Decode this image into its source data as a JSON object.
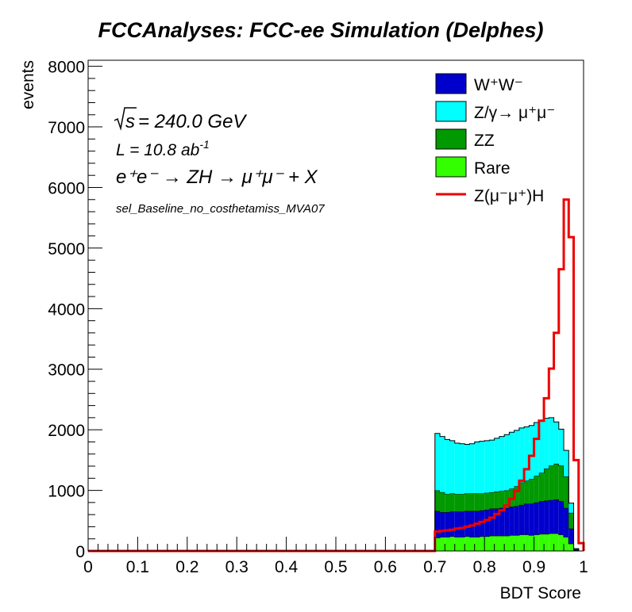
{
  "chart_data": {
    "type": "histogram",
    "title": "FCCAnalyses: FCC-ee Simulation (Delphes)",
    "xlabel": "BDT Score",
    "ylabel": "events",
    "xlim": [
      0,
      1
    ],
    "ylim": [
      0,
      8100
    ],
    "x_ticks": [
      "0",
      "0.1",
      "0.2",
      "0.3",
      "0.4",
      "0.5",
      "0.6",
      "0.7",
      "0.8",
      "0.9",
      "1"
    ],
    "y_ticks": [
      "0",
      "1000",
      "2000",
      "3000",
      "4000",
      "5000",
      "6000",
      "7000",
      "8000"
    ],
    "annotations": {
      "sqrt_s": "= 240.0 GeV",
      "lumi": "L = 10.8 ab",
      "lumi_exp": "-1",
      "process": "e⁺e⁻ → ZH → μ⁺μ⁻ + X",
      "selection": "sel_Baseline_no_costhetamiss_MVA07"
    },
    "legend_position": "top-right",
    "legend": [
      {
        "key": "ww",
        "label": "W⁺W⁻",
        "style": "fill",
        "color": "#0000cc"
      },
      {
        "key": "zg",
        "label": "Z/γ→ μ⁺μ⁻",
        "style": "fill",
        "color": "#00ffff"
      },
      {
        "key": "zz",
        "label": "ZZ",
        "style": "fill",
        "color": "#009900"
      },
      {
        "key": "rare",
        "label": "Rare",
        "style": "fill",
        "color": "#33ff00"
      },
      {
        "key": "signal",
        "label": "Z(μ⁻μ⁺)H",
        "style": "line",
        "color": "#ee0000"
      }
    ],
    "bin_width": 0.01,
    "bins_start": 0.7,
    "bin_low_edges": [
      0.7,
      0.71,
      0.72,
      0.73,
      0.74,
      0.75,
      0.76,
      0.77,
      0.78,
      0.79,
      0.8,
      0.81,
      0.82,
      0.83,
      0.84,
      0.85,
      0.86,
      0.87,
      0.88,
      0.89,
      0.9,
      0.91,
      0.92,
      0.93,
      0.94,
      0.95,
      0.96,
      0.97,
      0.98,
      0.99
    ],
    "stack_order": [
      "rare",
      "ww",
      "zz",
      "zg"
    ],
    "series": [
      {
        "key": "rare",
        "values": [
          220,
          230,
          230,
          240,
          230,
          230,
          240,
          230,
          230,
          240,
          240,
          250,
          250,
          250,
          250,
          260,
          260,
          270,
          270,
          260,
          270,
          280,
          280,
          290,
          290,
          270,
          230,
          120,
          10,
          0
        ]
      },
      {
        "key": "ww",
        "values": [
          440,
          410,
          410,
          410,
          420,
          420,
          420,
          430,
          430,
          430,
          440,
          450,
          450,
          460,
          460,
          470,
          480,
          490,
          510,
          520,
          530,
          540,
          550,
          550,
          560,
          550,
          480,
          250,
          10,
          0
        ]
      },
      {
        "key": "zz",
        "values": [
          340,
          330,
          300,
          300,
          290,
          290,
          290,
          290,
          290,
          280,
          280,
          270,
          280,
          280,
          290,
          300,
          330,
          370,
          380,
          410,
          440,
          470,
          530,
          570,
          590,
          590,
          520,
          260,
          10,
          0
        ]
      },
      {
        "key": "zg",
        "values": [
          940,
          920,
          900,
          870,
          840,
          830,
          810,
          820,
          850,
          860,
          860,
          860,
          880,
          900,
          920,
          930,
          920,
          900,
          890,
          880,
          880,
          870,
          830,
          790,
          690,
          600,
          430,
          160,
          10,
          0
        ]
      },
      {
        "key": "signal",
        "values": [
          320,
          330,
          340,
          350,
          370,
          380,
          400,
          420,
          450,
          480,
          510,
          550,
          610,
          670,
          750,
          860,
          990,
          1160,
          1350,
          1570,
          1850,
          2150,
          2520,
          3010,
          3600,
          4650,
          5800,
          5180,
          1500,
          130
        ]
      }
    ]
  }
}
